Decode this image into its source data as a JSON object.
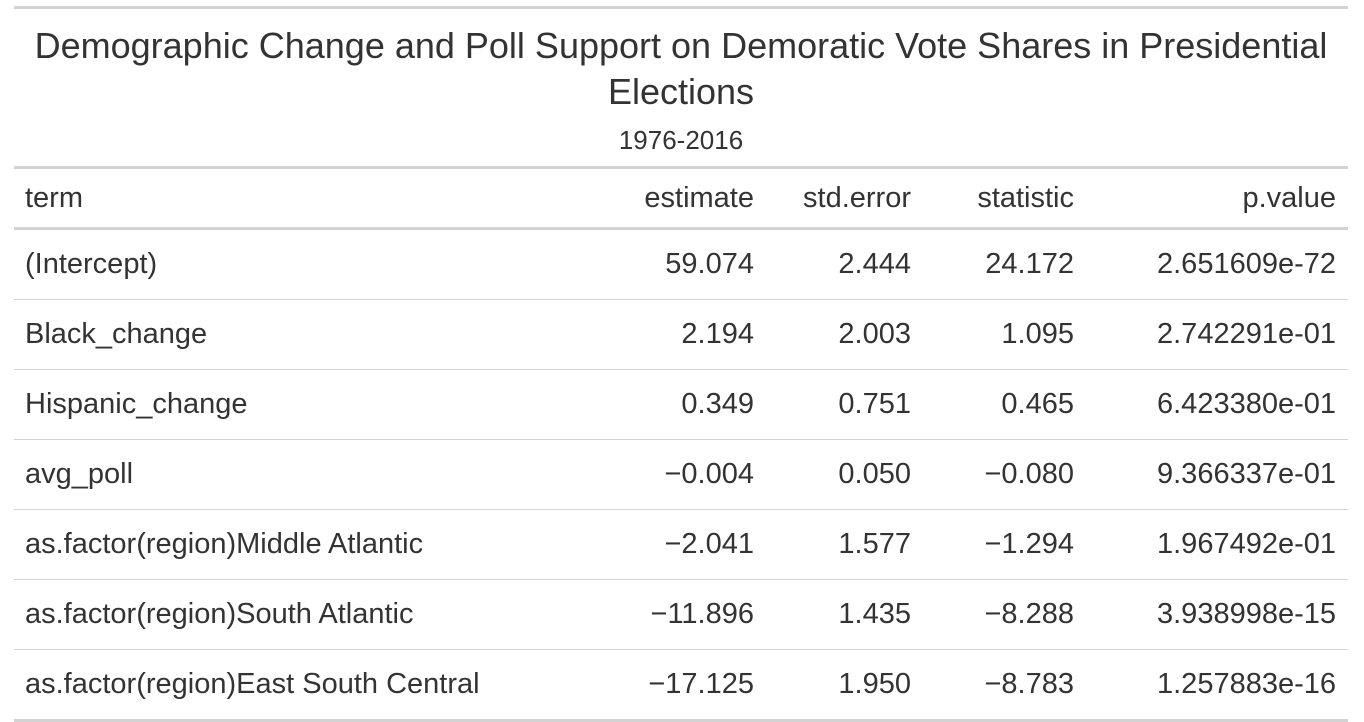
{
  "table": {
    "title": "Demographic Change and Poll Support on Demoratic Vote Shares in Presidential Elections",
    "subtitle": "1976-2016",
    "columns": [
      "term",
      "estimate",
      "std.error",
      "statistic",
      "p.value"
    ],
    "rows": [
      [
        "(Intercept)",
        "59.074",
        "2.444",
        "24.172",
        "2.651609e-72"
      ],
      [
        "Black_change",
        "2.194",
        "2.003",
        "1.095",
        "2.742291e-01"
      ],
      [
        "Hispanic_change",
        "0.349",
        "0.751",
        "0.465",
        "6.423380e-01"
      ],
      [
        "avg_poll",
        "−0.004",
        "0.050",
        "−0.080",
        "9.366337e-01"
      ],
      [
        "as.factor(region)Middle Atlantic",
        "−2.041",
        "1.577",
        "−1.294",
        "1.967492e-01"
      ],
      [
        "as.factor(region)South Atlantic",
        "−11.896",
        "1.435",
        "−8.288",
        "3.938998e-15"
      ],
      [
        "as.factor(region)East South Central",
        "−17.125",
        "1.950",
        "−8.783",
        "1.257883e-16"
      ]
    ]
  }
}
